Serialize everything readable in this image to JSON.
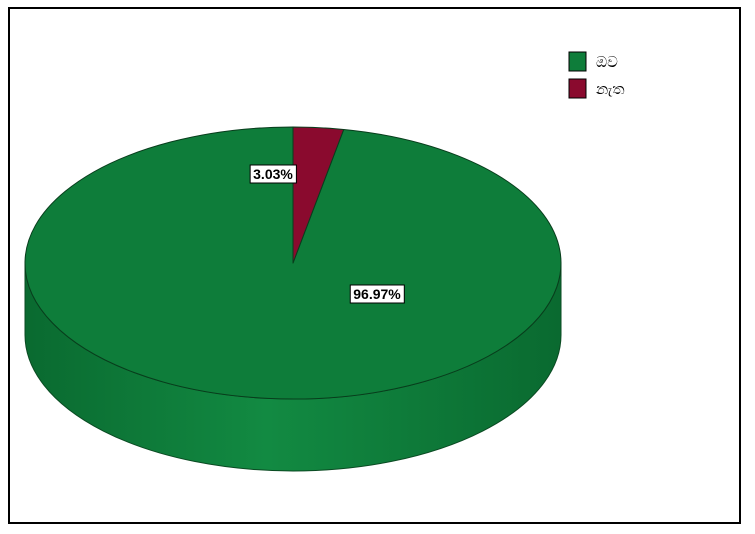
{
  "chart_data": {
    "type": "pie",
    "style": "3d",
    "start_angle_deg": 90,
    "direction": "counterclockwise",
    "slices": [
      {
        "label": "ඔව",
        "value": 96.97,
        "display": "96.97%",
        "color": "#0e7d3a"
      },
      {
        "label": "නැත",
        "value": 3.03,
        "display": "3.03%",
        "color": "#8a0a2e"
      }
    ],
    "legend_position": "top-right"
  }
}
